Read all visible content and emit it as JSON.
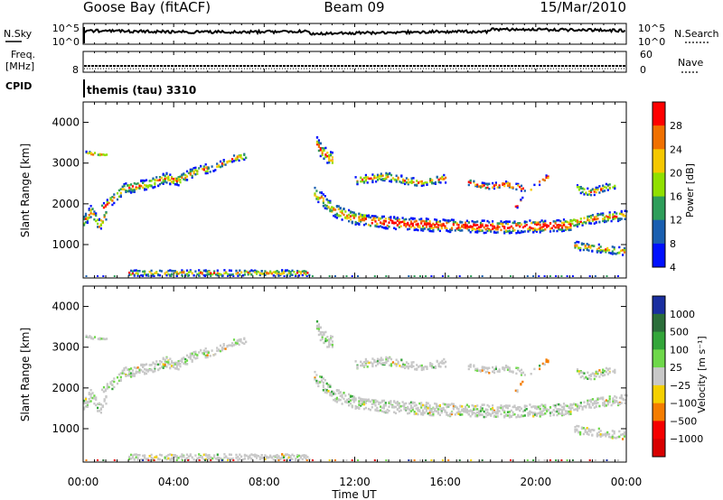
{
  "header": {
    "station": "Goose Bay (fitACF)",
    "beam": "Beam 09",
    "date": "15/Mar/2010"
  },
  "noise_panel": {
    "left_label": "N.Sky",
    "left_ticks": [
      "10^5",
      "10^0"
    ],
    "right_ticks": [
      "10^5",
      "10^0"
    ],
    "right_label": "N.Search"
  },
  "freq_panel": {
    "left_label_1": "Freq.",
    "left_label_2": "[MHz]",
    "left_tick": "8",
    "right_ticks": [
      "60",
      "0"
    ],
    "right_label": "Nave"
  },
  "cpid": {
    "label": "CPID",
    "value": "themis (tau) 3310"
  },
  "chart_data": [
    {
      "type": "heatmap",
      "name": "power",
      "ylabel": "Slant Range [km]",
      "ylim": [
        180,
        4500
      ],
      "yticks": [
        1000,
        2000,
        3000,
        4000
      ],
      "xlim_hours": [
        0,
        24
      ],
      "xtick_hours": [
        0,
        4,
        8,
        12,
        16,
        20,
        24
      ],
      "colorbar": {
        "label": "Power [dB]",
        "ticks": [
          "28",
          "24",
          "20",
          "16",
          "12",
          "8",
          "4"
        ],
        "colors": [
          "#ff0000",
          "#f07000",
          "#f5c800",
          "#90e000",
          "#2e9e5a",
          "#1a5fb0",
          "#0010ff"
        ]
      }
    },
    {
      "type": "heatmap",
      "name": "velocity",
      "ylabel": "Slant Range [km]",
      "ylim": [
        180,
        4500
      ],
      "yticks": [
        1000,
        2000,
        3000,
        4000
      ],
      "xlim_hours": [
        0,
        24
      ],
      "xtick_hours": [
        0,
        4,
        8,
        12,
        16,
        20,
        24
      ],
      "colorbar": {
        "label": "Velocity  [m s⁻¹]",
        "ticks": [
          "1000",
          "500",
          "100",
          "25",
          "−25",
          "−100",
          "−500",
          "−1000"
        ],
        "colors": [
          "#1a2fa0",
          "#2b6e3a",
          "#33a63a",
          "#6ed84a",
          "#c8c8c8",
          "#f5d000",
          "#f57d00",
          "#f50000",
          "#d80000"
        ]
      }
    }
  ],
  "x_axis": {
    "tick_labels": [
      "00:00",
      "04:00",
      "08:00",
      "12:00",
      "16:00",
      "20:00",
      "00:00"
    ],
    "label": "Time UT"
  }
}
